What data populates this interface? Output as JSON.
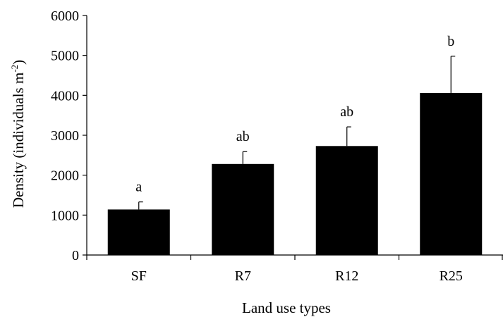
{
  "chart_data": {
    "type": "bar",
    "title": "",
    "xlabel": "Land use types",
    "ylabel": "Density (individuals m",
    "ylabel_sup": "-2",
    "ylabel_close": ")",
    "categories": [
      "SF",
      "R7",
      "R12",
      "R25"
    ],
    "values": [
      1140,
      2280,
      2730,
      4060
    ],
    "errors": [
      190,
      310,
      480,
      920
    ],
    "significance": [
      "a",
      "ab",
      "ab",
      "b"
    ],
    "ylim": [
      0,
      6000
    ],
    "yticks": [
      0,
      1000,
      2000,
      3000,
      4000,
      5000,
      6000
    ],
    "ytick_labels": [
      "0",
      "1000",
      "2000",
      "3000",
      "4000",
      "5000",
      "6000"
    ],
    "grid": false,
    "bar_color": "#000000"
  }
}
